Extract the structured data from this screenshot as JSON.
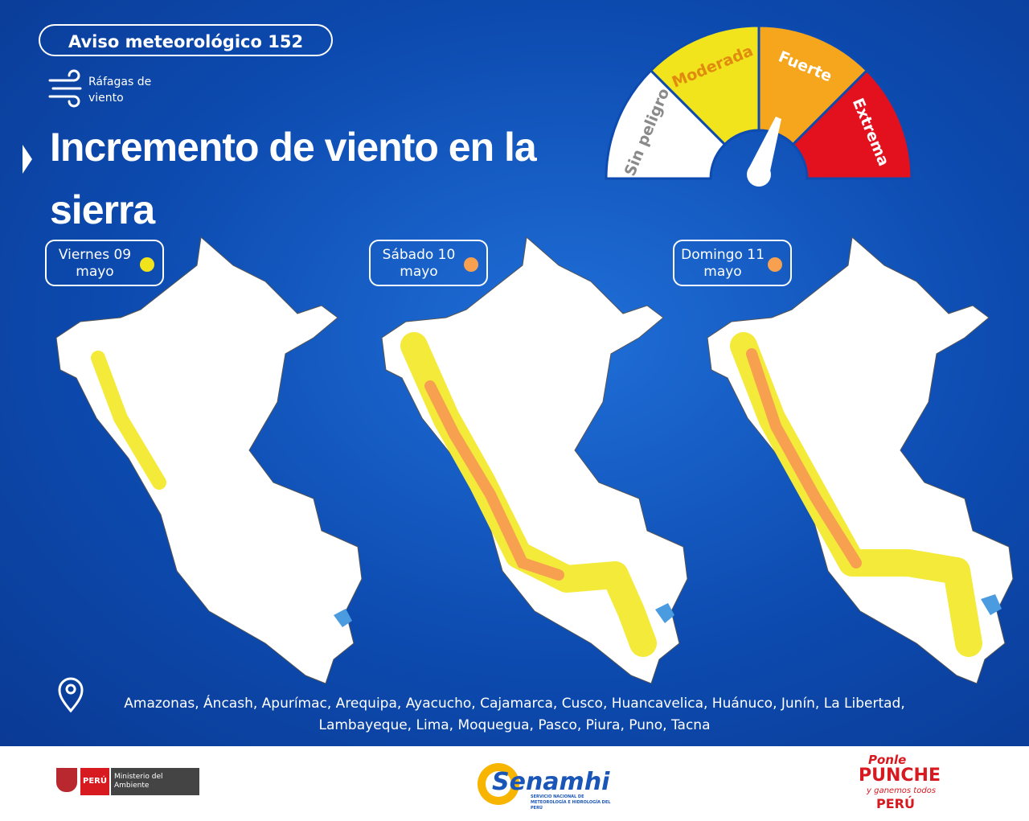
{
  "header": {
    "badge": "Aviso meteorológico 152",
    "hazard": "Ráfagas de viento",
    "title": "Incremento de viento en la sierra"
  },
  "gauge": {
    "levels": [
      {
        "label": "Sin peligro",
        "color": "#ffffff",
        "text_color": "#8a8a8a"
      },
      {
        "label": "Moderada",
        "color": "#f1e31c",
        "text_color": "#e08a10"
      },
      {
        "label": "Fuerte",
        "color": "#f6a61d",
        "text_color": "#ffffff"
      },
      {
        "label": "Extrema",
        "color": "#e3101e",
        "text_color": "#ffffff"
      }
    ]
  },
  "days": [
    {
      "day": "Viernes 09",
      "month": "mayo",
      "level_color": "#f1e31c"
    },
    {
      "day": "Sábado 10",
      "month": "mayo",
      "level_color": "#f6a050"
    },
    {
      "day": "Domingo 11",
      "month": "mayo",
      "level_color": "#f6a050"
    }
  ],
  "regions": "Amazonas, Áncash, Apurímac, Arequipa, Ayacucho, Cajamarca, Cusco, Huancavelica, Huánuco, Junín, La Libertad, Lambayeque, Lima, Moquegua, Pasco, Piura, Puno, Tacna",
  "footer": {
    "country": "PERÚ",
    "ministry": "Ministerio del Ambiente",
    "agency": "Senamhi",
    "agency_full": "SERVICIO NACIONAL DE METEOROLOGÍA E HIDROLOGÍA DEL PERÚ",
    "campaign_1": "Ponle",
    "campaign_2": "PUNCHE",
    "campaign_3": "y ganemos todos",
    "campaign_4": "PERÚ"
  }
}
